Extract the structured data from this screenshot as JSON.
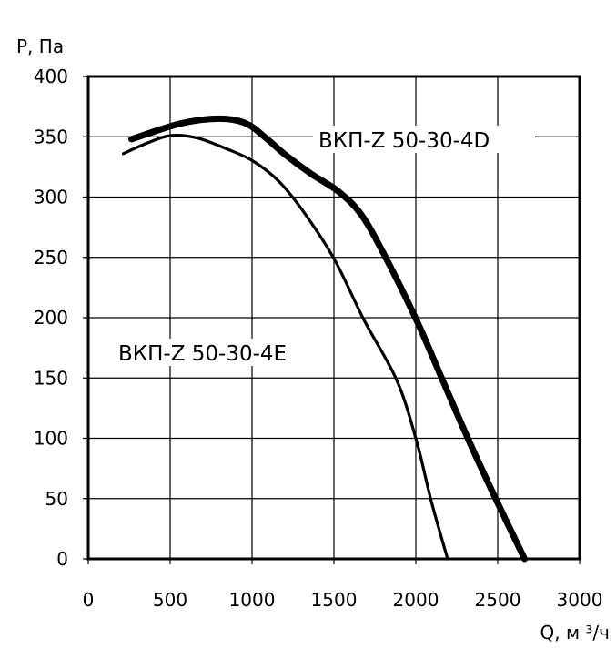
{
  "chart_data": {
    "type": "line",
    "title": "",
    "xlabel": "Q, м ³/ч",
    "ylabel": "P, Па",
    "xlim": [
      0,
      3000
    ],
    "ylim": [
      0,
      400
    ],
    "xticks": [
      0,
      500,
      1000,
      1500,
      2000,
      2500,
      3000
    ],
    "yticks": [
      0,
      50,
      100,
      150,
      200,
      250,
      300,
      350,
      400
    ],
    "grid": true,
    "series": [
      {
        "name": "ВКП-Z 50-30-4D",
        "style": "thick",
        "x": [
          264,
          564,
          804,
          964,
          1084,
          1204,
          1364,
          1524,
          1664,
          1804,
          2004,
          2164,
          2324,
          2494,
          2664
        ],
        "y": [
          348,
          361,
          365,
          361,
          349,
          335,
          319,
          305,
          286,
          253,
          198,
          148,
          98,
          48,
          0
        ]
      },
      {
        "name": "ВКП-Z 50-30-4E",
        "style": "thin",
        "x": [
          214,
          364,
          504,
          664,
          844,
          1004,
          1164,
          1324,
          1504,
          1684,
          1884,
          2004,
          2094,
          2194
        ],
        "y": [
          336,
          345,
          351,
          349,
          340,
          330,
          313,
          286,
          248,
          198,
          148,
          98,
          48,
          0
        ]
      }
    ]
  }
}
